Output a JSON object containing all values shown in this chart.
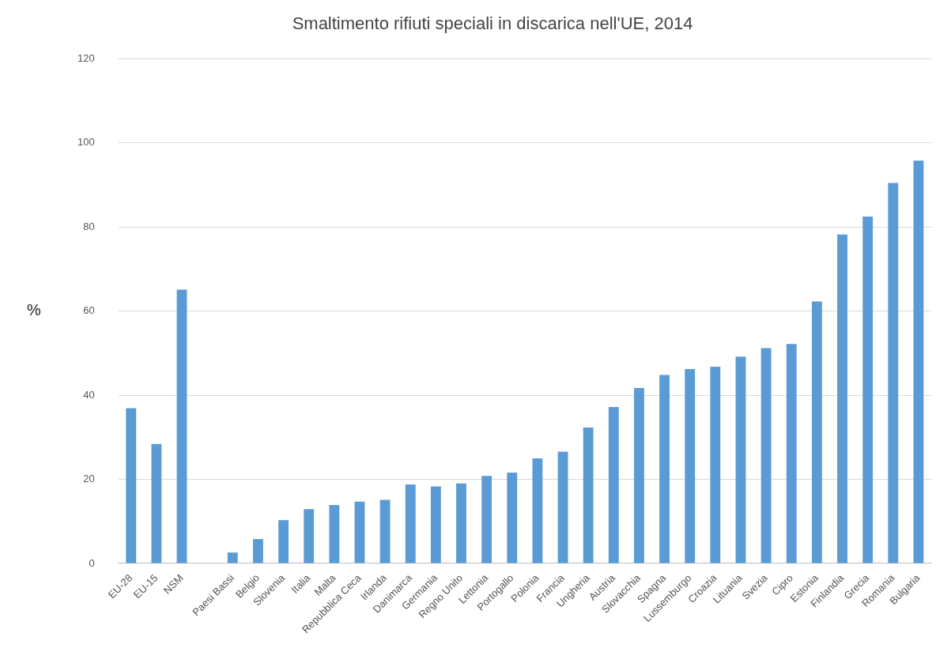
{
  "chart_data": {
    "type": "bar",
    "title": "Smaltimento rifiuti speciali in discarica nell'UE, 2014",
    "ylabel": "%",
    "categories": [
      "EU-28",
      "EU-15",
      "NSM",
      null,
      "Paesi Bassi",
      "Belgio",
      "Slovenia",
      "Italia",
      "Malta",
      "Repubblica Ceca",
      "Irlanda",
      "Danimarca",
      "Germania",
      "Regno Unito",
      "Lettonia",
      "Portogallo",
      "Polonia",
      "Francia",
      "Ungheria",
      "Austria",
      "Slovacchia",
      "Spagna",
      "Lussemburgo",
      "Croazia",
      "Lituania",
      "Svezia",
      "Cipro",
      "Estonia",
      "Finlandia",
      "Grecia",
      "Romania",
      "Bulgaria"
    ],
    "values": [
      36.9,
      28.4,
      65.1,
      null,
      2.6,
      5.8,
      10.3,
      12.9,
      13.9,
      14.7,
      15.1,
      18.8,
      18.3,
      19.0,
      20.8,
      21.6,
      25.0,
      26.6,
      32.3,
      37.2,
      41.7,
      44.8,
      46.2,
      46.8,
      49.2,
      51.2,
      52.2,
      62.3,
      78.2,
      82.5,
      90.5,
      95.8
    ],
    "color": "#5b9bd5",
    "ylim": [
      0,
      120
    ],
    "yticks": [
      0,
      20,
      40,
      60,
      80,
      100,
      120
    ],
    "grid": "y",
    "legend": false
  }
}
